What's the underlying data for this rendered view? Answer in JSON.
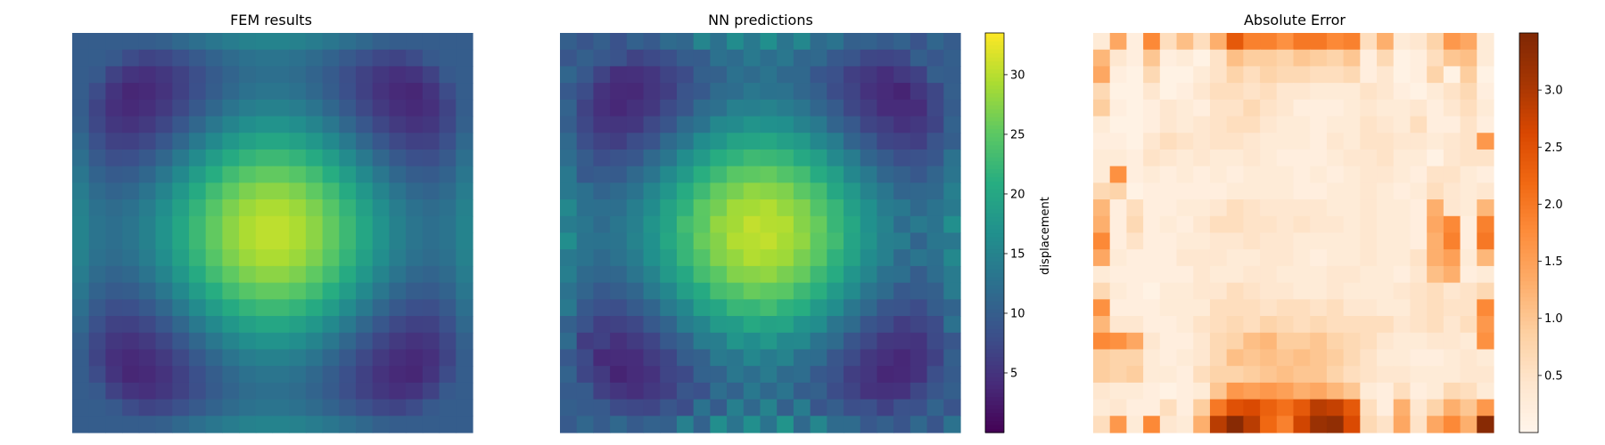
{
  "chart_data": [
    {
      "type": "heatmap",
      "title": "FEM results",
      "grid": [
        24,
        24
      ],
      "colormap": "viridis",
      "value_range": [
        0,
        33.5
      ],
      "colorbar": false,
      "description_of_values": "displacement field: peak ~33 at center, low ~0 ring at ~6 cells from edges, ~10 at edges"
    },
    {
      "type": "heatmap",
      "title": "NN predictions",
      "grid": [
        24,
        24
      ],
      "colormap": "viridis",
      "value_range": [
        0,
        33.5
      ],
      "colorbar": true,
      "colorbar_label": "displacement",
      "colorbar_ticks": [
        5,
        10,
        15,
        20,
        25,
        30
      ]
    },
    {
      "type": "heatmap",
      "title": "Absolute Error",
      "grid": [
        24,
        24
      ],
      "colormap": "oranges",
      "value_range": [
        0,
        3.5
      ],
      "colorbar": true,
      "colorbar_label": "",
      "colorbar_ticks": [
        0.5,
        1.0,
        1.5,
        2.0,
        2.5,
        3.0
      ],
      "error_values": [
        [
          0.3,
          1.4,
          0.2,
          1.8,
          0.6,
          1.1,
          0.6,
          1.3,
          2.4,
          1.9,
          1.9,
          1.7,
          2.0,
          2.0,
          1.8,
          1.9,
          0.6,
          1.3,
          0.3,
          0.4,
          0.8,
          1.6,
          1.4,
          0.3
        ],
        [
          1.2,
          0.4,
          0.2,
          1.0,
          0.2,
          0.3,
          0.1,
          0.5,
          1.1,
          0.9,
          0.9,
          0.8,
          1.0,
          0.9,
          0.8,
          1.0,
          0.2,
          0.7,
          0.1,
          0.2,
          0.6,
          1.0,
          1.1,
          0.3
        ],
        [
          1.4,
          0.2,
          0.1,
          0.7,
          0.1,
          0.1,
          0.3,
          0.5,
          0.8,
          0.6,
          0.8,
          0.7,
          0.7,
          0.6,
          0.6,
          0.7,
          0.2,
          0.4,
          0.1,
          0.2,
          0.8,
          0.1,
          0.9,
          0.1
        ],
        [
          0.7,
          0.1,
          0.1,
          0.4,
          0.1,
          0.2,
          0.4,
          0.6,
          0.6,
          0.5,
          0.6,
          0.4,
          0.4,
          0.3,
          0.3,
          0.3,
          0.5,
          0.4,
          0.2,
          0.1,
          0.3,
          0.5,
          0.7,
          0.2
        ],
        [
          0.9,
          0.2,
          0.1,
          0.2,
          0.4,
          0.3,
          0.2,
          0.5,
          0.5,
          0.7,
          0.5,
          0.4,
          0.2,
          0.2,
          0.2,
          0.3,
          0.4,
          0.3,
          0.3,
          0.4,
          0.2,
          0.4,
          0.6,
          0.3
        ],
        [
          0.3,
          0.1,
          0.1,
          0.2,
          0.4,
          0.3,
          0.4,
          0.5,
          0.6,
          0.6,
          0.4,
          0.3,
          0.3,
          0.2,
          0.3,
          0.3,
          0.5,
          0.4,
          0.3,
          0.6,
          0.2,
          0.2,
          0.5,
          0.2
        ],
        [
          0.2,
          0.2,
          0.1,
          0.4,
          0.6,
          0.5,
          0.4,
          0.5,
          0.5,
          0.4,
          0.3,
          0.3,
          0.3,
          0.2,
          0.4,
          0.3,
          0.5,
          0.5,
          0.4,
          0.4,
          0.3,
          0.4,
          0.5,
          1.6
        ],
        [
          0.3,
          0.3,
          0.2,
          0.5,
          0.4,
          0.3,
          0.4,
          0.3,
          0.3,
          0.4,
          0.3,
          0.2,
          0.2,
          0.2,
          0.3,
          0.4,
          0.4,
          0.5,
          0.3,
          0.3,
          0.1,
          0.4,
          0.5,
          0.5
        ],
        [
          0.3,
          1.7,
          0.2,
          0.3,
          0.2,
          0.3,
          0.2,
          0.3,
          0.2,
          0.3,
          0.3,
          0.3,
          0.2,
          0.3,
          0.2,
          0.3,
          0.4,
          0.4,
          0.3,
          0.2,
          0.5,
          0.5,
          0.3,
          0.2
        ],
        [
          0.7,
          0.8,
          0.1,
          0.2,
          0.2,
          0.2,
          0.2,
          0.2,
          0.3,
          0.3,
          0.3,
          0.3,
          0.2,
          0.2,
          0.3,
          0.3,
          0.4,
          0.3,
          0.2,
          0.3,
          0.6,
          0.4,
          0.3,
          0.4
        ],
        [
          1.2,
          0.2,
          0.6,
          0.2,
          0.2,
          0.3,
          0.3,
          0.4,
          0.6,
          0.5,
          0.4,
          0.4,
          0.4,
          0.4,
          0.3,
          0.3,
          0.4,
          0.3,
          0.3,
          0.2,
          1.3,
          0.4,
          0.3,
          1.2
        ],
        [
          1.3,
          0.2,
          0.7,
          0.2,
          0.3,
          0.2,
          0.4,
          0.6,
          0.6,
          0.5,
          0.5,
          0.4,
          0.5,
          0.4,
          0.4,
          0.3,
          0.4,
          0.3,
          0.3,
          0.2,
          1.4,
          1.8,
          0.2,
          1.9
        ],
        [
          1.8,
          0.2,
          0.5,
          0.2,
          0.2,
          0.3,
          0.3,
          0.4,
          0.4,
          0.5,
          0.4,
          0.4,
          0.3,
          0.3,
          0.3,
          0.3,
          0.4,
          0.3,
          0.3,
          0.2,
          1.3,
          1.9,
          0.2,
          2.0
        ],
        [
          1.4,
          0.3,
          0.2,
          0.2,
          0.2,
          0.4,
          0.4,
          0.4,
          0.3,
          0.3,
          0.4,
          0.4,
          0.3,
          0.2,
          0.3,
          0.3,
          0.4,
          0.3,
          0.3,
          0.5,
          1.3,
          1.5,
          0.3,
          1.2
        ],
        [
          0.3,
          0.2,
          0.2,
          0.2,
          0.2,
          0.2,
          0.4,
          0.3,
          0.3,
          0.4,
          0.4,
          0.3,
          0.3,
          0.3,
          0.4,
          0.4,
          0.3,
          0.3,
          0.2,
          0.4,
          1.1,
          1.3,
          0.2,
          0.3
        ],
        [
          0.7,
          0.3,
          0.2,
          0.1,
          0.3,
          0.3,
          0.4,
          0.4,
          0.6,
          0.5,
          0.4,
          0.4,
          0.3,
          0.3,
          0.4,
          0.3,
          0.3,
          0.3,
          0.4,
          0.5,
          0.6,
          0.4,
          0.5,
          0.7
        ],
        [
          1.7,
          0.2,
          0.2,
          0.2,
          0.3,
          0.3,
          0.3,
          0.6,
          0.6,
          0.6,
          0.5,
          0.6,
          0.6,
          0.5,
          0.6,
          0.4,
          0.4,
          0.3,
          0.3,
          0.5,
          0.6,
          0.5,
          0.5,
          1.8
        ],
        [
          1.2,
          0.4,
          0.4,
          0.2,
          0.2,
          0.3,
          0.5,
          0.6,
          0.7,
          0.6,
          0.8,
          0.7,
          0.6,
          0.7,
          0.6,
          0.6,
          0.6,
          0.6,
          0.4,
          0.5,
          0.6,
          0.4,
          0.6,
          1.6
        ],
        [
          1.8,
          1.7,
          1.4,
          0.4,
          0.2,
          0.2,
          0.4,
          0.7,
          0.8,
          1.1,
          1.2,
          0.9,
          0.9,
          1.0,
          0.8,
          0.7,
          0.6,
          0.4,
          0.3,
          0.3,
          0.4,
          0.4,
          0.3,
          1.7
        ],
        [
          0.9,
          0.8,
          0.8,
          0.3,
          0.2,
          0.3,
          0.4,
          0.7,
          1.1,
          1.0,
          1.1,
          1.0,
          1.1,
          1.0,
          0.9,
          0.7,
          0.5,
          0.3,
          0.3,
          0.2,
          0.2,
          0.3,
          0.4,
          0.3
        ],
        [
          0.9,
          0.8,
          0.9,
          0.3,
          0.3,
          0.2,
          0.6,
          0.8,
          0.8,
          0.9,
          1.0,
          1.1,
          1.0,
          1.0,
          0.8,
          0.6,
          0.5,
          0.4,
          0.4,
          0.3,
          0.3,
          0.3,
          0.4,
          0.4
        ],
        [
          0.4,
          0.3,
          0.3,
          0.2,
          0.1,
          0.2,
          0.3,
          1.0,
          1.6,
          1.5,
          1.6,
          1.5,
          1.3,
          1.4,
          1.2,
          1.0,
          0.3,
          0.2,
          0.6,
          0.2,
          0.3,
          0.7,
          0.6,
          0.3
        ],
        [
          0.3,
          0.4,
          0.2,
          0.2,
          0.6,
          0.2,
          0.9,
          2.0,
          2.5,
          2.6,
          2.3,
          2.1,
          2.4,
          2.9,
          2.8,
          2.4,
          0.6,
          0.2,
          1.3,
          0.4,
          0.8,
          1.3,
          1.0,
          1.6
        ],
        [
          0.6,
          1.6,
          0.3,
          1.8,
          0.4,
          0.3,
          1.3,
          2.9,
          3.4,
          2.9,
          2.2,
          1.9,
          2.7,
          3.2,
          3.3,
          2.6,
          0.7,
          0.5,
          1.4,
          0.5,
          1.4,
          1.8,
          1.3,
          3.4
        ]
      ]
    }
  ]
}
